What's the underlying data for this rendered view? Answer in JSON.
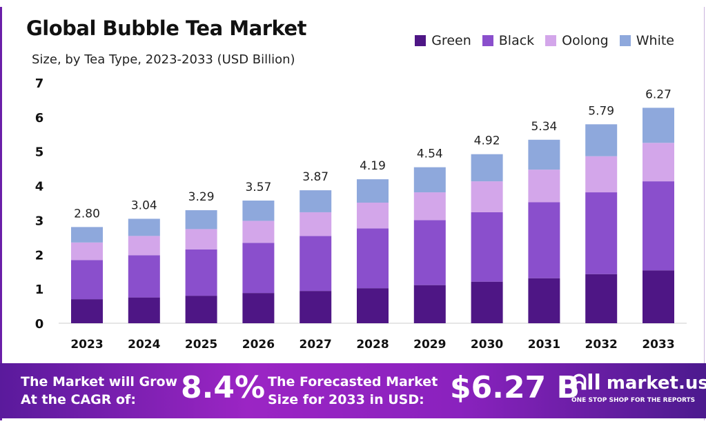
{
  "chart_data": {
    "type": "bar",
    "stacked": true,
    "title": "Global Bubble Tea Market",
    "subtitle": "Size, by Tea Type, 2023-2033 (USD Billion)",
    "xlabel": "",
    "ylabel": "",
    "ylim": [
      0,
      7
    ],
    "yticks": [
      "0",
      "1",
      "2",
      "3",
      "4",
      "5",
      "6",
      "7"
    ],
    "grid": false,
    "legend_position": "top-right",
    "categories": [
      "2023",
      "2024",
      "2025",
      "2026",
      "2027",
      "2028",
      "2029",
      "2030",
      "2031",
      "2032",
      "2033"
    ],
    "totals": [
      "2.80",
      "3.04",
      "3.29",
      "3.57",
      "3.87",
      "4.19",
      "4.54",
      "4.92",
      "5.34",
      "5.79",
      "6.27"
    ],
    "series": [
      {
        "name": "Green",
        "color": "#4e1685",
        "values": [
          0.7,
          0.75,
          0.8,
          0.88,
          0.94,
          1.02,
          1.11,
          1.21,
          1.31,
          1.43,
          1.54
        ]
      },
      {
        "name": "Black",
        "color": "#8a4fcc",
        "values": [
          1.14,
          1.23,
          1.35,
          1.46,
          1.6,
          1.74,
          1.89,
          2.02,
          2.21,
          2.38,
          2.59
        ]
      },
      {
        "name": "Oolong",
        "color": "#d3a6ea",
        "values": [
          0.51,
          0.56,
          0.59,
          0.64,
          0.69,
          0.75,
          0.81,
          0.9,
          0.95,
          1.05,
          1.12
        ]
      },
      {
        "name": "White",
        "color": "#8ea8dc",
        "values": [
          0.45,
          0.5,
          0.55,
          0.59,
          0.64,
          0.68,
          0.73,
          0.79,
          0.87,
          0.93,
          1.02
        ]
      }
    ]
  },
  "footer": {
    "cagr_label": "The Market will Grow At the CAGR of:",
    "cagr_value": "8.4%",
    "forecast_label": "The Forecasted Market Size for 2033 in USD:",
    "forecast_value": "$6.27 B",
    "brand": "market.us",
    "tagline": "ONE STOP SHOP FOR THE REPORTS"
  }
}
